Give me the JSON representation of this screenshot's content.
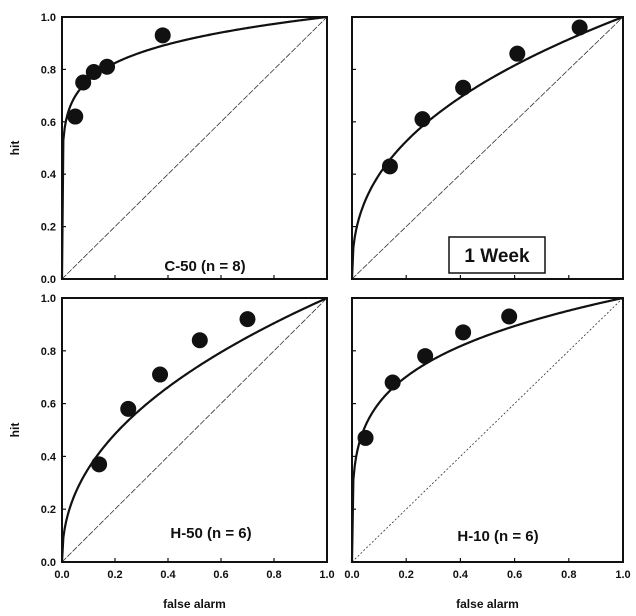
{
  "chart_data": [
    {
      "type": "scatter",
      "panel_label": "C-50 (n = 8)",
      "xlabel": "",
      "ylabel": "hit",
      "xlim": [
        0,
        1
      ],
      "ylim": [
        0,
        1
      ],
      "x_ticks": [],
      "y_ticks": [
        "0.0",
        "0.2",
        "0.4",
        "0.6",
        "0.8",
        "1.0"
      ],
      "points": [
        [
          0.05,
          0.62
        ],
        [
          0.08,
          0.75
        ],
        [
          0.12,
          0.79
        ],
        [
          0.17,
          0.81
        ],
        [
          0.38,
          0.93
        ]
      ],
      "curve_exponent": 0.12,
      "boxed": false
    },
    {
      "type": "scatter",
      "panel_label": "1 Week",
      "xlabel": "",
      "ylabel": "",
      "xlim": [
        0,
        1
      ],
      "ylim": [
        0,
        1
      ],
      "x_ticks": [],
      "y_ticks": [],
      "points": [
        [
          0.14,
          0.43
        ],
        [
          0.26,
          0.61
        ],
        [
          0.41,
          0.73
        ],
        [
          0.61,
          0.86
        ],
        [
          0.84,
          0.96
        ]
      ],
      "curve_exponent": 0.4,
      "boxed": true
    },
    {
      "type": "scatter",
      "panel_label": "H-50 (n = 6)",
      "xlabel": "false alarm",
      "ylabel": "hit",
      "xlim": [
        0,
        1
      ],
      "ylim": [
        0,
        1
      ],
      "x_ticks": [
        "0.0",
        "0.2",
        "0.4",
        "0.6",
        "0.8",
        "1.0"
      ],
      "y_ticks": [
        "0.0",
        "0.2",
        "0.4",
        "0.6",
        "0.8",
        "1.0"
      ],
      "points": [
        [
          0.14,
          0.37
        ],
        [
          0.25,
          0.58
        ],
        [
          0.37,
          0.71
        ],
        [
          0.52,
          0.84
        ],
        [
          0.7,
          0.92
        ]
      ],
      "curve_exponent": 0.45,
      "boxed": false
    },
    {
      "type": "scatter",
      "panel_label": "H-10 (n = 6)",
      "xlabel": "false alarm",
      "ylabel": "",
      "xlim": [
        0,
        1
      ],
      "ylim": [
        0,
        1
      ],
      "x_ticks": [
        "0.0",
        "0.2",
        "0.4",
        "0.6",
        "0.8",
        "1.0"
      ],
      "y_ticks": [],
      "points": [
        [
          0.05,
          0.47
        ],
        [
          0.15,
          0.68
        ],
        [
          0.27,
          0.78
        ],
        [
          0.41,
          0.87
        ],
        [
          0.58,
          0.93
        ]
      ],
      "curve_exponent": 0.22,
      "boxed": false
    }
  ]
}
